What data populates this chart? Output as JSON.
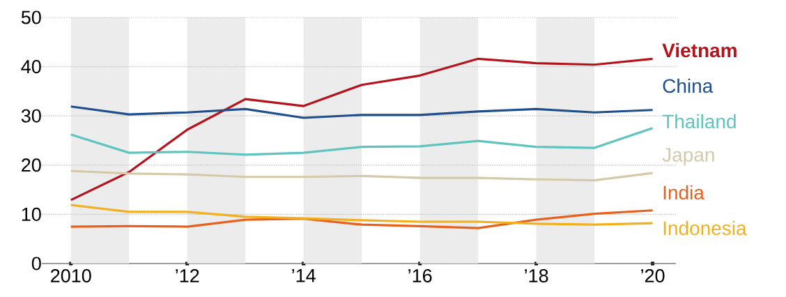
{
  "chart_data": {
    "type": "line",
    "x": [
      2010,
      2011,
      2012,
      2013,
      2014,
      2015,
      2016,
      2017,
      2018,
      2019,
      2020
    ],
    "series": [
      {
        "name": "Vietnam",
        "color": "#b5121b",
        "values": [
          12.9,
          18.6,
          27.2,
          33.4,
          32.0,
          36.3,
          38.2,
          41.6,
          40.7,
          40.4,
          41.6
        ]
      },
      {
        "name": "China",
        "color": "#1f4e8c",
        "values": [
          31.9,
          30.3,
          30.7,
          31.4,
          29.6,
          30.2,
          30.2,
          30.9,
          31.4,
          30.7,
          31.2
        ]
      },
      {
        "name": "Thailand",
        "color": "#5fc4bf",
        "values": [
          26.2,
          22.5,
          22.7,
          22.1,
          22.5,
          23.7,
          23.8,
          24.9,
          23.7,
          23.5,
          27.5
        ]
      },
      {
        "name": "Japan",
        "color": "#d4c9a8",
        "values": [
          18.8,
          18.3,
          18.1,
          17.6,
          17.6,
          17.8,
          17.4,
          17.4,
          17.1,
          16.9,
          18.4
        ]
      },
      {
        "name": "India",
        "color": "#e8601c",
        "values": [
          7.5,
          7.6,
          7.5,
          8.9,
          9.1,
          7.9,
          7.6,
          7.2,
          8.9,
          10.1,
          10.8
        ]
      },
      {
        "name": "Indonesia",
        "color": "#f2b01e",
        "values": [
          11.9,
          10.5,
          10.5,
          9.5,
          9.2,
          8.8,
          8.5,
          8.5,
          8.1,
          7.9,
          8.2
        ]
      }
    ],
    "xlim": [
      2009.5,
      2020.4
    ],
    "xticks": [
      {
        "value": 2010,
        "label": "2010"
      },
      {
        "value": 2012,
        "label": "’12"
      },
      {
        "value": 2014,
        "label": "’14"
      },
      {
        "value": 2016,
        "label": "’16"
      },
      {
        "value": 2018,
        "label": "’18"
      },
      {
        "value": 2020,
        "label": "’20"
      }
    ],
    "ylim": [
      0,
      50
    ],
    "yticks": [
      0,
      10,
      20,
      30,
      40,
      50
    ],
    "bands": [
      {
        "axis": "x",
        "from": 2010,
        "to": 2011,
        "color": "#ececec"
      },
      {
        "axis": "x",
        "from": 2012,
        "to": 2013,
        "color": "#ececec"
      },
      {
        "axis": "x",
        "from": 2014,
        "to": 2015,
        "color": "#ececec"
      },
      {
        "axis": "x",
        "from": 2016,
        "to": 2017,
        "color": "#ececec"
      },
      {
        "axis": "x",
        "from": 2018,
        "to": 2019,
        "color": "#ececec"
      }
    ],
    "grid": "y",
    "legend": "right",
    "marker": "none",
    "line_style": "solid"
  }
}
